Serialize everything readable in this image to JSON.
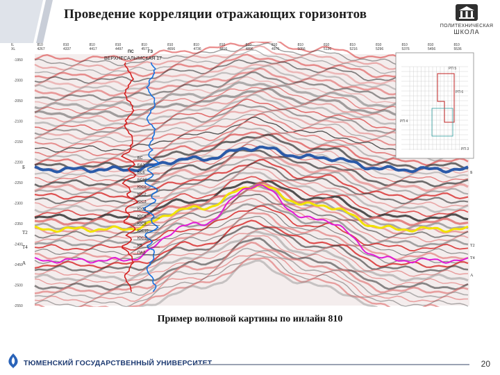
{
  "header": {
    "title": "Проведение корреляции отражающих горизонтов",
    "logo_line1": "ПОЛИТЕХНИЧЕСКАЯ",
    "logo_line2": "ШКОЛА"
  },
  "seismic": {
    "top_labels": [
      {
        "a": "IL",
        "b": "XL"
      },
      {
        "a": "810",
        "b": "4267"
      },
      {
        "a": "810",
        "b": "4337"
      },
      {
        "a": "810",
        "b": "4417"
      },
      {
        "a": "810",
        "b": "4497"
      },
      {
        "a": "810",
        "b": "4577"
      },
      {
        "a": "810",
        "b": "4656"
      },
      {
        "a": "810",
        "b": "4736"
      },
      {
        "a": "810",
        "b": "4816"
      },
      {
        "a": "810",
        "b": "4896"
      },
      {
        "a": "810",
        "b": "4976"
      },
      {
        "a": "810",
        "b": "5056"
      },
      {
        "a": "810",
        "b": "5136"
      },
      {
        "a": "810",
        "b": "5216"
      },
      {
        "a": "810",
        "b": "5296"
      },
      {
        "a": "810",
        "b": "5376"
      },
      {
        "a": "810",
        "b": "5456"
      },
      {
        "a": "810",
        "b": "5536"
      }
    ],
    "time_ticks": [
      "-1950",
      "-2000",
      "-2050",
      "-2100",
      "-2150",
      "-2200",
      "-2250",
      "-2300",
      "-2350",
      "-2400",
      "-2450",
      "-2500",
      "-2550"
    ],
    "well_label": "ВЕРХНЕСАЛЫМСКАЯ 17",
    "well_log_labels": [
      "ПС",
      "ГЗ"
    ],
    "horizon_left": [
      "Б",
      "Т2",
      "Т4",
      "А"
    ],
    "horizon_right": [
      "Б",
      "Т2",
      "Т4",
      "А"
    ],
    "formation_tops": [
      "БС",
      "БАЗ",
      "БС6",
      "БС10",
      "ЮС0",
      "ЮС2",
      "ЮС3",
      "ЮС4",
      "ЮС6",
      "ЮС9",
      "ЮС10",
      "ЮС11",
      "КВ",
      "ПАЛ"
    ],
    "inset_labels": [
      "РП 5",
      "РП 6",
      "РП 4",
      "РП 3"
    ],
    "colors": {
      "horizon_B": "#2b5aa8",
      "horizon_T2": "#f2e300",
      "horizon_A": "#e01ad6",
      "log_sp": "#d42020",
      "log_gz": "#1670e0",
      "seismic_positive": "#d83030",
      "seismic_negative": "#3a3a3a"
    }
  },
  "caption": "Пример волновой картины по инлайн 810",
  "footer": {
    "university": "ТЮМЕНСКИЙ ГОСУДАРСТВЕННЫЙ УНИВЕРСИТЕТ",
    "page_number": "20"
  }
}
